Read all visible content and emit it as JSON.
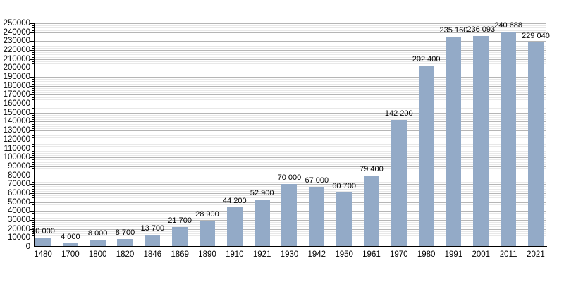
{
  "chart_data": {
    "type": "bar",
    "title": "",
    "xlabel": "",
    "ylabel": "",
    "legend": "none",
    "grid": "horizontal: minor every 2500 (light), major every 10000 (darker)",
    "ylim": [
      0,
      250000
    ],
    "y_major_step": 10000,
    "y_minor_step": 2500,
    "y_tick_labels": [
      "0",
      "10000",
      "20000",
      "30000",
      "40000",
      "50000",
      "60000",
      "70000",
      "80000",
      "90000",
      "100000",
      "110000",
      "120000",
      "130000",
      "140000",
      "150000",
      "160000",
      "170000",
      "180000",
      "190000",
      "200000",
      "210000",
      "220000",
      "230000",
      "240000",
      "250000"
    ],
    "categories": [
      "1480",
      "1700",
      "1800",
      "1820",
      "1846",
      "1869",
      "1890",
      "1910",
      "1921",
      "1930",
      "1942",
      "1950",
      "1961",
      "1970",
      "1980",
      "1991",
      "2001",
      "2011",
      "2021"
    ],
    "values": [
      10000,
      4000,
      8000,
      8700,
      13700,
      21700,
      28900,
      44200,
      52900,
      70000,
      67000,
      60700,
      79400,
      142200,
      202400,
      235160,
      236093,
      240688,
      229040
    ],
    "value_labels": [
      "10 000",
      "4 000",
      "8 000",
      "8 700",
      "13 700",
      "21 700",
      "28 900",
      "44 200",
      "52 900",
      "70 000",
      "67 000",
      "60 700",
      "79 400",
      "142 200",
      "202 400",
      "235 160",
      "236 093",
      "240 688",
      "229 040"
    ],
    "colors": {
      "bar": "#93aac7",
      "grid_major": "#b5b5b5",
      "grid_minor": "#e8e8e8",
      "axis": "#000000",
      "text": "#000000",
      "background": "#ffffff"
    }
  }
}
